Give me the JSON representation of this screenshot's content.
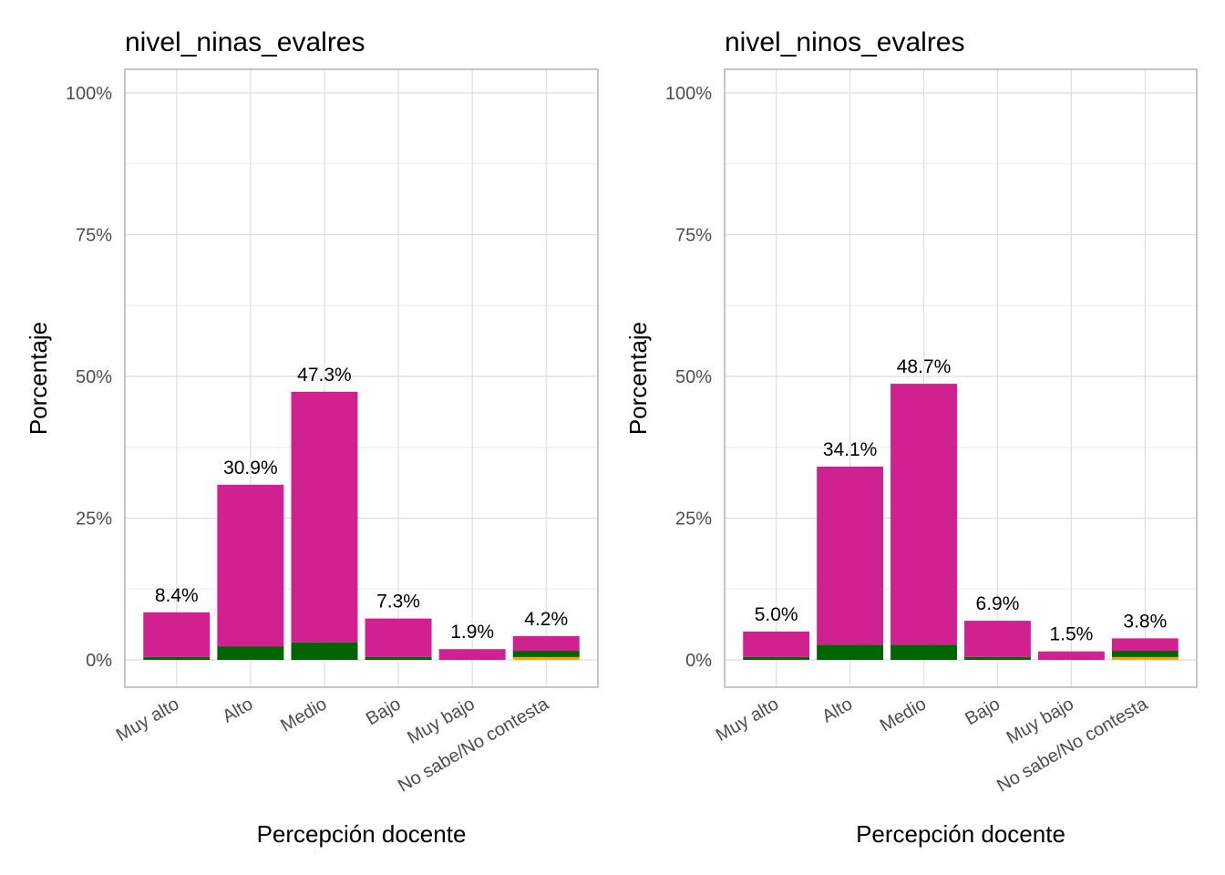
{
  "chart_data": [
    {
      "type": "bar",
      "stacked": true,
      "title": "nivel_ninas_evalres",
      "xlabel": "Percepción docente",
      "ylabel": "Porcentaje",
      "ylim": [
        0,
        100
      ],
      "yticks": [
        "0%",
        "25%",
        "50%",
        "75%",
        "100%"
      ],
      "categories": [
        "Muy alto",
        "Alto",
        "Medio",
        "Bajo",
        "Muy bajo",
        "No sabe/No contesta"
      ],
      "totals_labels": [
        "8.4%",
        "30.9%",
        "47.3%",
        "7.3%",
        "1.9%",
        "4.2%"
      ],
      "series": [
        {
          "color": "#FFA500",
          "values": [
            0,
            0,
            0,
            0,
            0,
            0.5
          ]
        },
        {
          "color": "#006400",
          "values": [
            0.5,
            2.4,
            3.1,
            0.5,
            0,
            1.1
          ]
        },
        {
          "color": "#D12190",
          "values": [
            7.9,
            28.5,
            44.2,
            6.8,
            1.9,
            2.6
          ]
        }
      ],
      "grid": true
    },
    {
      "type": "bar",
      "stacked": true,
      "title": "nivel_ninos_evalres",
      "xlabel": "Percepción docente",
      "ylabel": "Porcentaje",
      "ylim": [
        0,
        100
      ],
      "yticks": [
        "0%",
        "25%",
        "50%",
        "75%",
        "100%"
      ],
      "categories": [
        "Muy alto",
        "Alto",
        "Medio",
        "Bajo",
        "Muy bajo",
        "No sabe/No contesta"
      ],
      "totals_labels": [
        "5.0%",
        "34.1%",
        "48.7%",
        "6.9%",
        "1.5%",
        "3.8%"
      ],
      "series": [
        {
          "color": "#FFA500",
          "values": [
            0,
            0,
            0,
            0,
            0,
            0.5
          ]
        },
        {
          "color": "#006400",
          "values": [
            0.5,
            2.7,
            2.7,
            0.5,
            0,
            1.1
          ]
        },
        {
          "color": "#D12190",
          "values": [
            4.5,
            31.4,
            46.0,
            6.4,
            1.5,
            2.2
          ]
        }
      ],
      "grid": true
    }
  ]
}
